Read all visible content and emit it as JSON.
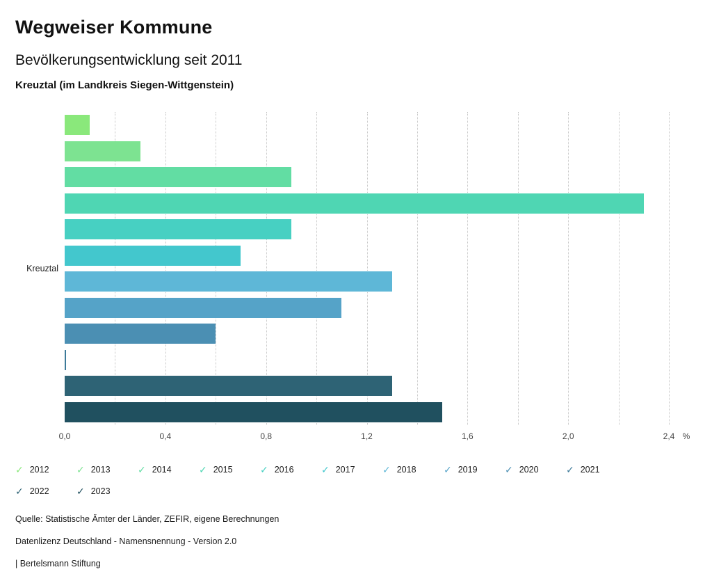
{
  "header": {
    "title": "Wegweiser Kommune",
    "subtitle": "Bevölkerungsentwicklung seit 2011",
    "location": "Kreuztal (im Landkreis Siegen-Wittgenstein)"
  },
  "chart_data": {
    "type": "bar",
    "orientation": "horizontal",
    "title": "Bevölkerungsentwicklung seit 2011",
    "category_label": "Kreuztal",
    "unit": "%",
    "xlim": [
      0,
      2.4
    ],
    "grid_step": 0.2,
    "grid": true,
    "legend_position": "bottom",
    "x_ticks": [
      {
        "value": 0.0,
        "label": "0,0"
      },
      {
        "value": 0.4,
        "label": "0,4"
      },
      {
        "value": 0.8,
        "label": "0,8"
      },
      {
        "value": 1.2,
        "label": "1,2"
      },
      {
        "value": 1.6,
        "label": "1,6"
      },
      {
        "value": 2.0,
        "label": "2,0"
      },
      {
        "value": 2.4,
        "label": "2,4"
      }
    ],
    "series": [
      {
        "name": "2012",
        "value": 0.1,
        "color": "#8ae87b"
      },
      {
        "name": "2013",
        "value": 0.3,
        "color": "#7de391"
      },
      {
        "name": "2014",
        "value": 0.9,
        "color": "#62dda3"
      },
      {
        "name": "2015",
        "value": 2.3,
        "color": "#4fd6b3"
      },
      {
        "name": "2016",
        "value": 0.9,
        "color": "#47d0c2"
      },
      {
        "name": "2017",
        "value": 0.7,
        "color": "#43c7cd"
      },
      {
        "name": "2018",
        "value": 1.3,
        "color": "#5eb7d7"
      },
      {
        "name": "2019",
        "value": 1.1,
        "color": "#55a3c8"
      },
      {
        "name": "2020",
        "value": 0.6,
        "color": "#4b8fb3"
      },
      {
        "name": "2021",
        "value": 0.0,
        "color": "#3d7a99"
      },
      {
        "name": "2022",
        "value": 1.3,
        "color": "#2e6375"
      },
      {
        "name": "2023",
        "value": 1.5,
        "color": "#20505f"
      }
    ]
  },
  "legend": {
    "check_icon": "✓"
  },
  "footer": {
    "source": "Quelle: Statistische Ämter der Länder, ZEFIR, eigene Berechnungen",
    "license": "Datenlizenz Deutschland - Namensnennung - Version 2.0",
    "attribution": "| Bertelsmann Stiftung"
  }
}
